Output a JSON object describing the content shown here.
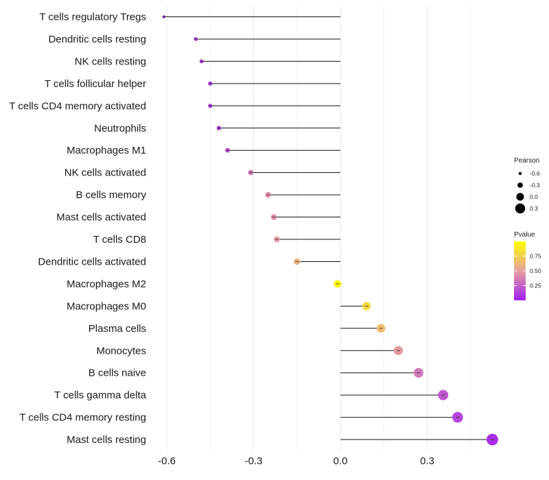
{
  "chart_data": {
    "type": "lollipop",
    "title": "",
    "xlabel": "",
    "ylabel": "",
    "xlim": [
      -0.65,
      0.55
    ],
    "x_ticks": [
      -0.6,
      -0.3,
      0.0,
      0.3
    ],
    "x_tick_labels": [
      "-0.6",
      "-0.3",
      "0.0",
      "0.3"
    ],
    "baseline": 0.0,
    "categories": [
      "T cells regulatory  Tregs",
      "Dendritic cells resting",
      "NK cells resting",
      "T cells follicular helper",
      "T cells CD4 memory activated",
      "Neutrophils",
      "Macrophages M1",
      "NK cells activated",
      "B cells memory",
      "Mast cells activated",
      "T cells CD8",
      "Dendritic cells activated",
      "Macrophages M2",
      "Macrophages M0",
      "Plasma cells",
      "Monocytes",
      "B cells naive",
      "T cells gamma delta",
      "T cells CD4 memory resting",
      "Mast cells resting"
    ],
    "pearson": [
      -0.61,
      -0.5,
      -0.48,
      -0.45,
      -0.45,
      -0.42,
      -0.39,
      -0.31,
      -0.25,
      -0.23,
      -0.22,
      -0.15,
      -0.01,
      0.09,
      0.14,
      0.2,
      0.27,
      0.355,
      0.405,
      0.525
    ],
    "pvalue": [
      0.05,
      0.1,
      0.1,
      0.1,
      0.1,
      0.12,
      0.18,
      0.35,
      0.45,
      0.45,
      0.48,
      0.6,
      0.97,
      0.8,
      0.65,
      0.48,
      0.35,
      0.22,
      0.15,
      0.06
    ],
    "legend": {
      "size_title": "Pearson",
      "size_values": [
        -0.6,
        -0.3,
        0.0,
        0.3
      ],
      "size_labels": [
        "-0.6",
        "-0.3",
        "0.0",
        "0.3"
      ],
      "color_title": "Pvalue",
      "color_breaks": [
        0.25,
        0.5,
        0.75
      ],
      "color_labels": [
        "0.25",
        "0.50",
        "0.75"
      ],
      "color_low": "#a020f0",
      "color_mid": "#e6a0a0",
      "color_high": "#ffff00",
      "placement": "right"
    }
  }
}
